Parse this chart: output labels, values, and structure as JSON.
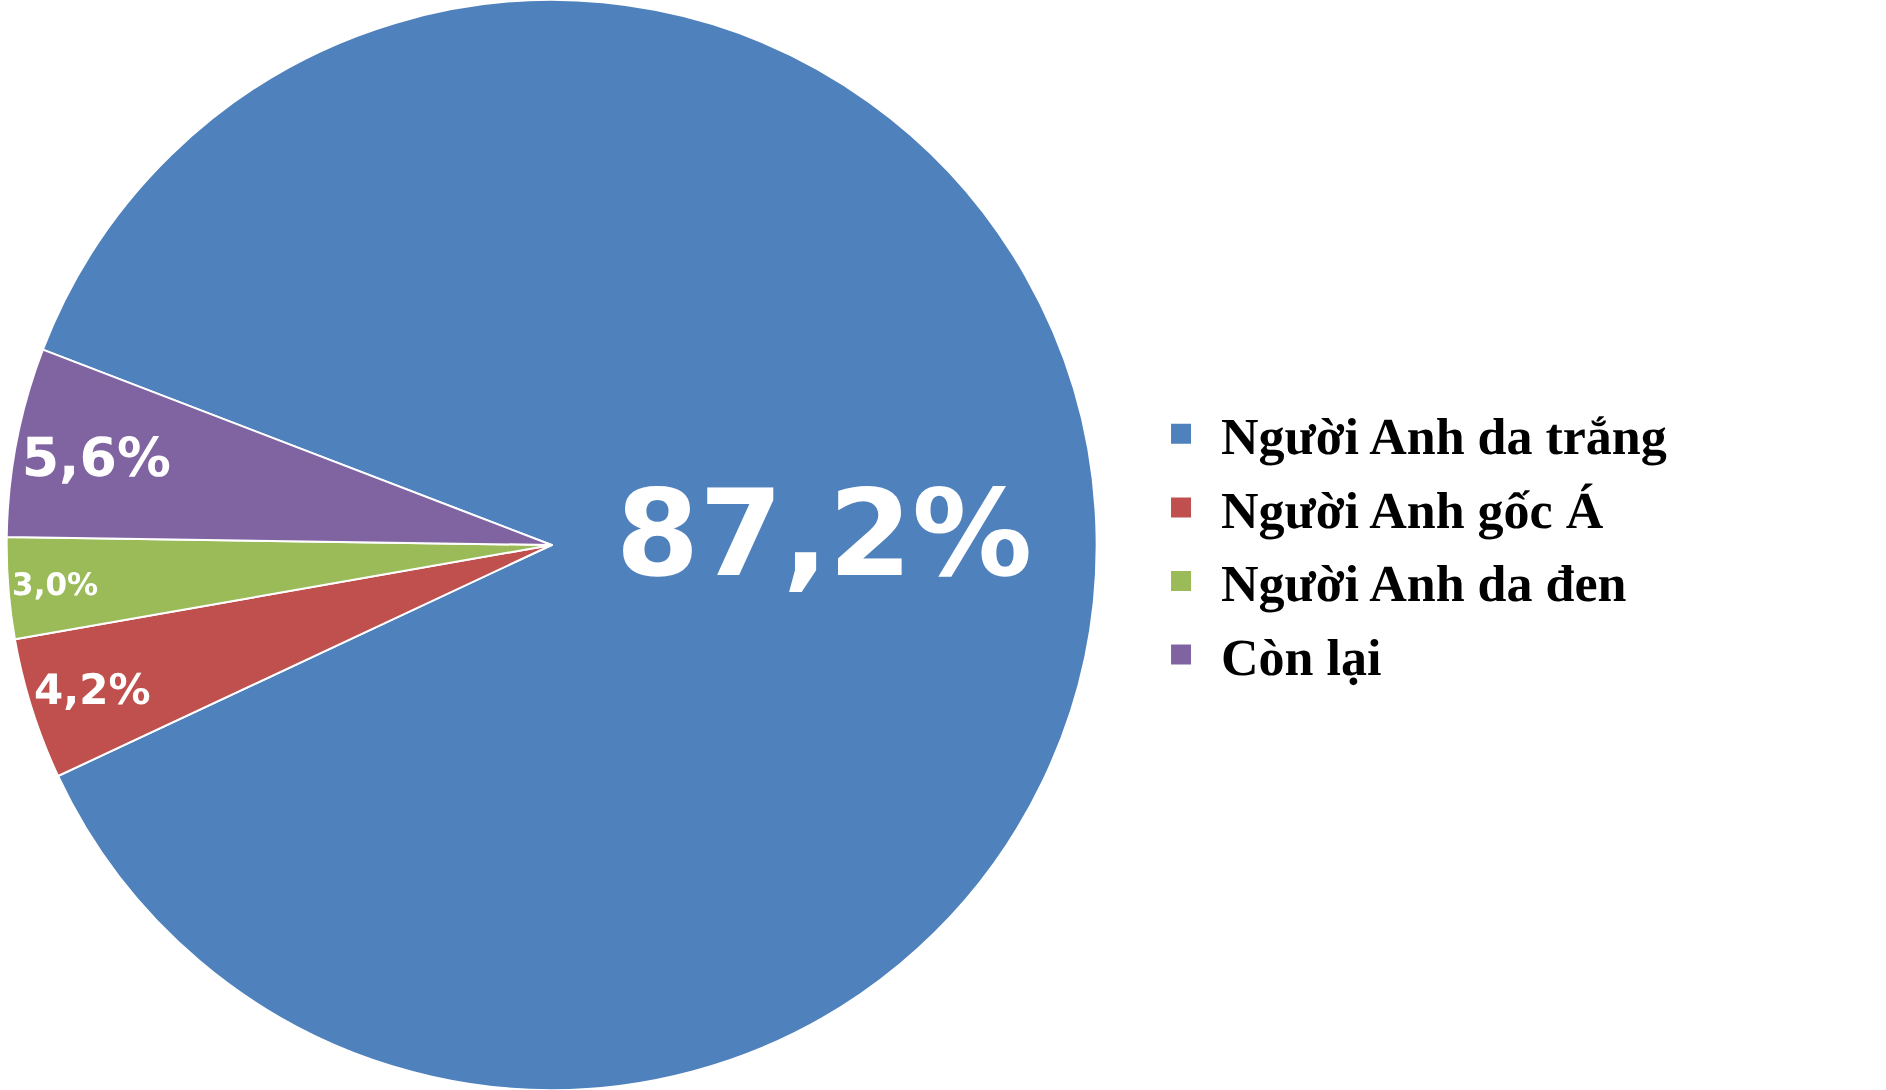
{
  "chart_data": {
    "type": "pie",
    "categories": [
      "Người Anh da trắng",
      "Người Anh gốc Á",
      "Người Anh da đen",
      "Còn lại"
    ],
    "values": [
      87.2,
      4.2,
      3.0,
      5.6
    ],
    "colors": [
      "#4f81bd",
      "#c0504d",
      "#9bbb59",
      "#8064a2"
    ],
    "value_labels": [
      "87,2%",
      "4,2%",
      "3,0%",
      "5,6%"
    ],
    "legend": "right"
  }
}
